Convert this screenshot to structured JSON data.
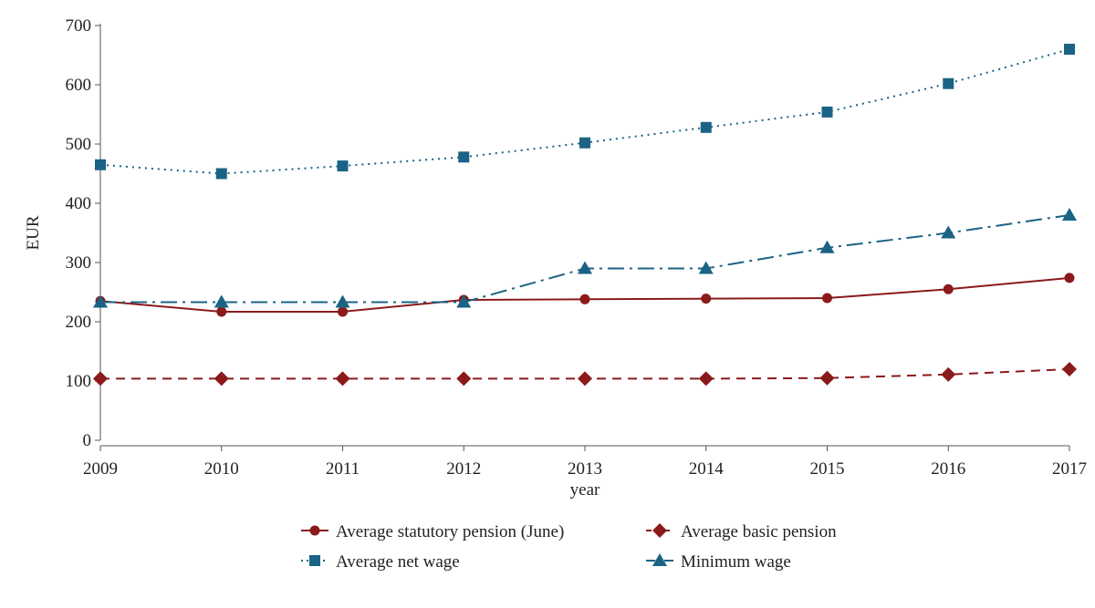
{
  "chart_data": {
    "type": "line",
    "title": "",
    "xlabel": "year",
    "ylabel": "EUR",
    "x": [
      2009,
      2010,
      2011,
      2012,
      2013,
      2014,
      2015,
      2016,
      2017
    ],
    "xlim": [
      2009,
      2017
    ],
    "ylim": [
      0,
      700
    ],
    "yticks": [
      0,
      100,
      200,
      300,
      400,
      500,
      600,
      700
    ],
    "grid": false,
    "legend_position": "bottom",
    "series": [
      {
        "name": "Average statutory pension (June)",
        "values": [
          235,
          217,
          217,
          237,
          238,
          239,
          240,
          255,
          274
        ],
        "color": "#8b1a1a",
        "marker": "circle",
        "line_style": "solid"
      },
      {
        "name": "Average basic pension",
        "values": [
          104,
          104,
          104,
          104,
          104,
          104,
          105,
          111,
          120
        ],
        "color": "#8b1a1a",
        "marker": "diamond",
        "line_style": "dashed"
      },
      {
        "name": "Average net wage",
        "values": [
          465,
          450,
          463,
          478,
          502,
          528,
          554,
          602,
          660
        ],
        "color": "#1a6385",
        "marker": "square",
        "line_style": "dotted"
      },
      {
        "name": "Minimum wage",
        "values": [
          233,
          233,
          233,
          233,
          290,
          290,
          325,
          350,
          380
        ],
        "color": "#1a6385",
        "marker": "triangle",
        "line_style": "dashdot"
      }
    ]
  }
}
